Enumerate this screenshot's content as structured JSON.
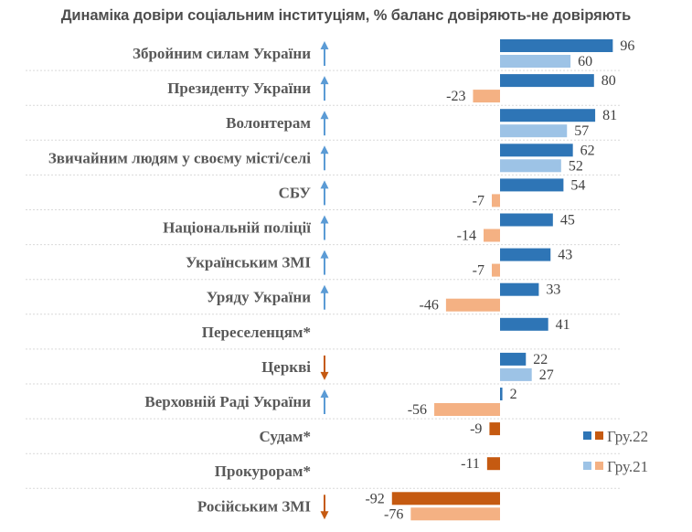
{
  "chart_data": {
    "type": "bar",
    "orientation": "horizontal",
    "title": "Динаміка довіри соціальним інституціям, % баланс довіряють-не довіряють",
    "xlabel": "",
    "ylabel": "",
    "xlim": [
      -100,
      100
    ],
    "grid": false,
    "legend_position": "bottom-right",
    "categories": [
      "Збройним силам України",
      "Президенту України",
      "Волонтерам",
      "Звичайним людям у своєму місті/селі",
      "СБУ",
      "Національній поліції",
      "Українським ЗМІ",
      "Уряду України",
      "Переселенцям*",
      "Церкві",
      "Верховній Раді України",
      "Судам*",
      "Прокурорам*",
      "Російським ЗМІ"
    ],
    "trend": [
      "up",
      "up",
      "up",
      "up",
      "up",
      "up",
      "up",
      "up",
      "none",
      "down",
      "up",
      "none",
      "none",
      "down"
    ],
    "series": [
      {
        "name": "Гру.22",
        "values": [
          96,
          80,
          81,
          62,
          54,
          45,
          43,
          33,
          41,
          22,
          2,
          -9,
          -11,
          -92
        ],
        "color_positive": "#2e75b6",
        "color_negative": "#c55a11"
      },
      {
        "name": "Гру.21",
        "values": [
          60,
          -23,
          57,
          52,
          -7,
          -14,
          -7,
          -46,
          null,
          27,
          -56,
          null,
          null,
          -76
        ],
        "color_positive": "#9dc3e6",
        "color_negative": "#f4b183"
      }
    ],
    "trend_colors": {
      "up": "#5b9bd5",
      "down": "#c55a11"
    }
  }
}
